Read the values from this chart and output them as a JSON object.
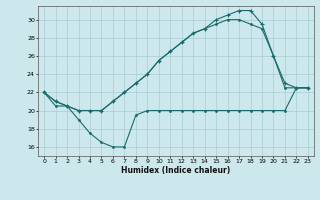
{
  "xlabel": "Humidex (Indice chaleur)",
  "bg_color": "#cce8ec",
  "grid_color": "#aaccd4",
  "line_color": "#1a6b6b",
  "xlim": [
    -0.5,
    23.5
  ],
  "ylim": [
    15.0,
    31.5
  ],
  "xticks": [
    0,
    1,
    2,
    3,
    4,
    5,
    6,
    7,
    8,
    9,
    10,
    11,
    12,
    13,
    14,
    15,
    16,
    17,
    18,
    19,
    20,
    21,
    22,
    23
  ],
  "yticks": [
    16,
    18,
    20,
    22,
    24,
    26,
    28,
    30
  ],
  "line1_x": [
    0,
    1,
    2,
    3,
    4,
    5,
    6,
    7,
    8,
    9,
    10,
    11,
    12,
    13,
    14,
    15,
    16,
    17,
    18,
    19,
    20,
    21,
    22,
    23
  ],
  "line1_y": [
    22,
    21,
    20.5,
    20,
    20,
    20,
    21,
    22,
    23,
    24,
    25.5,
    26.5,
    27.5,
    28.5,
    29,
    30,
    30.5,
    31,
    31,
    29.5,
    26,
    23,
    22.5,
    22.5
  ],
  "line2_x": [
    0,
    1,
    2,
    3,
    4,
    5,
    6,
    7,
    8,
    9,
    10,
    11,
    12,
    13,
    14,
    15,
    16,
    17,
    18,
    19,
    20,
    21,
    22,
    23
  ],
  "line2_y": [
    22,
    21,
    20.5,
    20,
    20,
    20,
    21,
    22,
    23,
    24,
    25.5,
    26.5,
    27.5,
    28.5,
    29,
    29.5,
    30,
    30,
    29.5,
    29,
    26,
    22.5,
    22.5,
    22.5
  ],
  "line3_x": [
    0,
    1,
    2,
    3,
    4,
    5,
    6,
    7,
    8,
    9,
    10,
    11,
    12,
    13,
    14,
    15,
    16,
    17,
    18,
    19,
    20,
    21,
    22,
    23
  ],
  "line3_y": [
    22,
    20.5,
    20.5,
    19,
    17.5,
    16.5,
    16,
    16,
    19.5,
    20,
    20,
    20,
    20,
    20,
    20,
    20,
    20,
    20,
    20,
    20,
    20,
    20,
    22.5,
    22.5
  ]
}
